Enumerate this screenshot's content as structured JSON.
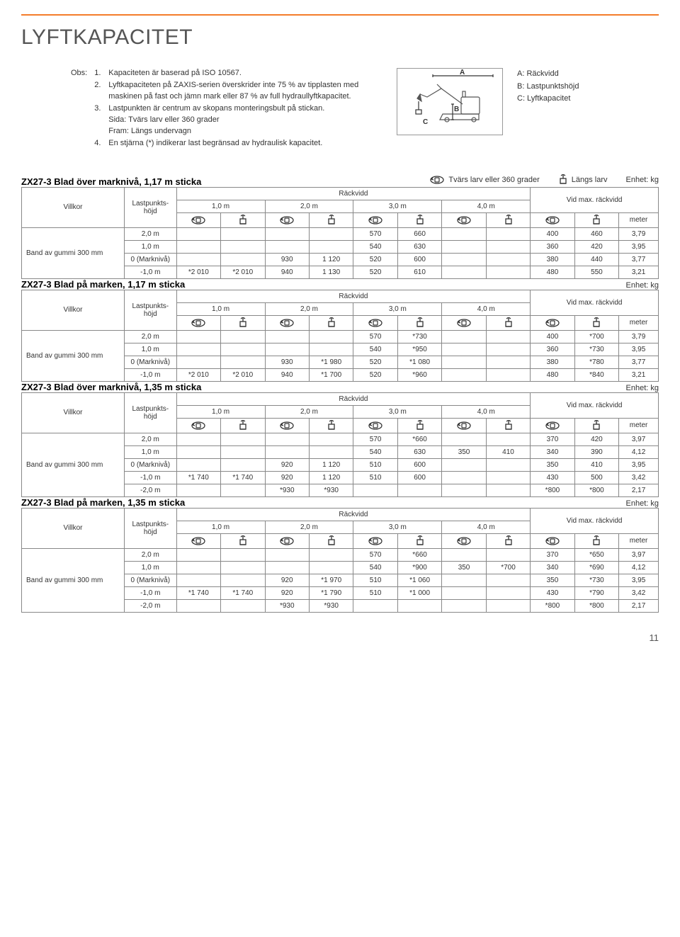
{
  "page": {
    "title": "LYFTKAPACITET",
    "page_number": "11"
  },
  "obs": {
    "label": "Obs:",
    "items": [
      {
        "n": "1.",
        "t": "Kapaciteten är baserad på ISO 10567."
      },
      {
        "n": "2.",
        "t": "Lyftkapaciteten på ZAXIS-serien överskrider inte 75 % av tipplasten med maskinen på fast och jämn mark eller 87 % av full hydraullyftkapacitet."
      },
      {
        "n": "3.",
        "t": "Lastpunkten är centrum av skopans monteringsbult på stickan.\nSida: Tvärs larv eller 360 grader\nFram: Längs undervagn"
      },
      {
        "n": "4.",
        "t": "En stjärna (*) indikerar last begränsad av hydraulisk kapacitet."
      }
    ]
  },
  "legend": {
    "a": "A: Räckvidd",
    "b": "B: Lastpunktshöjd",
    "c": "C: Lyftkapacitet"
  },
  "top_notes": {
    "mode_360": "Tvärs larv eller 360 grader",
    "mode_front": "Längs larv",
    "unit": "Enhet: kg"
  },
  "common": {
    "reach_header": "Räckvidd",
    "villkor": "Villkor",
    "lastpunkt": "Lastpunkts-\nhöjd",
    "max_reach": "Vid max. räckvidd",
    "meter": "meter",
    "dist_cols": [
      "1,0 m",
      "2,0 m",
      "3,0 m",
      "4,0 m"
    ],
    "condition": "Band av gummi 300 mm"
  },
  "tables": [
    {
      "title": "ZX27-3 Blad över marknivå, 1,17 m sticka",
      "show_top_legend": true,
      "rows": [
        {
          "h": "2,0 m",
          "cells": [
            "",
            "",
            "",
            "",
            "570",
            "660",
            "",
            "",
            "400",
            "460",
            "3,79"
          ]
        },
        {
          "h": "1,0 m",
          "cells": [
            "",
            "",
            "",
            "",
            "540",
            "630",
            "",
            "",
            "360",
            "420",
            "3,95"
          ]
        },
        {
          "h": "0 (Marknivå)",
          "cells": [
            "",
            "",
            "930",
            "1 120",
            "520",
            "600",
            "",
            "",
            "380",
            "440",
            "3,77"
          ]
        },
        {
          "h": "-1,0 m",
          "cells": [
            "*2 010",
            "*2 010",
            "940",
            "1 130",
            "520",
            "610",
            "",
            "",
            "480",
            "550",
            "3,21"
          ]
        }
      ]
    },
    {
      "title": "ZX27-3 Blad på marken, 1,17 m sticka",
      "show_top_legend": false,
      "rows": [
        {
          "h": "2,0 m",
          "cells": [
            "",
            "",
            "",
            "",
            "570",
            "*730",
            "",
            "",
            "400",
            "*700",
            "3,79"
          ]
        },
        {
          "h": "1,0 m",
          "cells": [
            "",
            "",
            "",
            "",
            "540",
            "*950",
            "",
            "",
            "360",
            "*730",
            "3,95"
          ]
        },
        {
          "h": "0 (Marknivå)",
          "cells": [
            "",
            "",
            "930",
            "*1 980",
            "520",
            "*1 080",
            "",
            "",
            "380",
            "*780",
            "3,77"
          ]
        },
        {
          "h": "-1,0 m",
          "cells": [
            "*2 010",
            "*2 010",
            "940",
            "*1 700",
            "520",
            "*960",
            "",
            "",
            "480",
            "*840",
            "3,21"
          ]
        }
      ]
    },
    {
      "title": "ZX27-3 Blad över marknivå, 1,35 m sticka",
      "show_top_legend": false,
      "rows": [
        {
          "h": "2,0 m",
          "cells": [
            "",
            "",
            "",
            "",
            "570",
            "*660",
            "",
            "",
            "370",
            "420",
            "3,97"
          ]
        },
        {
          "h": "1,0 m",
          "cells": [
            "",
            "",
            "",
            "",
            "540",
            "630",
            "350",
            "410",
            "340",
            "390",
            "4,12"
          ]
        },
        {
          "h": "0 (Marknivå)",
          "cells": [
            "",
            "",
            "920",
            "1 120",
            "510",
            "600",
            "",
            "",
            "350",
            "410",
            "3,95"
          ]
        },
        {
          "h": "-1,0 m",
          "cells": [
            "*1 740",
            "*1 740",
            "920",
            "1 120",
            "510",
            "600",
            "",
            "",
            "430",
            "500",
            "3,42"
          ]
        },
        {
          "h": "-2,0 m",
          "cells": [
            "",
            "",
            "*930",
            "*930",
            "",
            "",
            "",
            "",
            "*800",
            "*800",
            "2,17"
          ]
        }
      ]
    },
    {
      "title": "ZX27-3 Blad på marken, 1,35 m sticka",
      "show_top_legend": false,
      "rows": [
        {
          "h": "2,0 m",
          "cells": [
            "",
            "",
            "",
            "",
            "570",
            "*660",
            "",
            "",
            "370",
            "*650",
            "3,97"
          ]
        },
        {
          "h": "1,0 m",
          "cells": [
            "",
            "",
            "",
            "",
            "540",
            "*900",
            "350",
            "*700",
            "340",
            "*690",
            "4,12"
          ]
        },
        {
          "h": "0 (Marknivå)",
          "cells": [
            "",
            "",
            "920",
            "*1 970",
            "510",
            "*1 060",
            "",
            "",
            "350",
            "*730",
            "3,95"
          ]
        },
        {
          "h": "-1,0 m",
          "cells": [
            "*1 740",
            "*1 740",
            "920",
            "*1 790",
            "510",
            "*1 000",
            "",
            "",
            "430",
            "*790",
            "3,42"
          ]
        },
        {
          "h": "-2,0 m",
          "cells": [
            "",
            "",
            "*930",
            "*930",
            "",
            "",
            "",
            "",
            "*800",
            "*800",
            "2,17"
          ]
        }
      ]
    }
  ],
  "style": {
    "accent_color": "#f47c2b",
    "border_color": "#888888",
    "text_color": "#333333",
    "background": "#ffffff",
    "title_fontsize": 30,
    "body_fontsize": 11,
    "table_fontsize": 10
  }
}
